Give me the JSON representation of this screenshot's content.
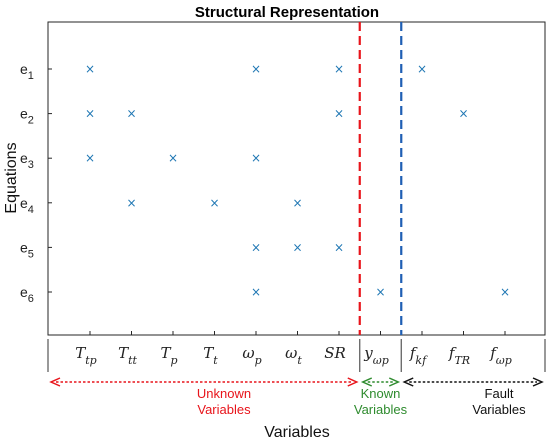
{
  "chart_data": {
    "type": "scatter",
    "title": "Structural Representation",
    "xlabel": "Variables",
    "ylabel": "Equations",
    "equations": [
      {
        "base": "e",
        "sub": "1"
      },
      {
        "base": "e",
        "sub": "2"
      },
      {
        "base": "e",
        "sub": "3"
      },
      {
        "base": "e",
        "sub": "4"
      },
      {
        "base": "e",
        "sub": "5"
      },
      {
        "base": "e",
        "sub": "6"
      }
    ],
    "variables": [
      {
        "base": "T",
        "sub": "tp"
      },
      {
        "base": "T",
        "sub": "tt"
      },
      {
        "base": "T",
        "sub": "p"
      },
      {
        "base": "T",
        "sub": "t"
      },
      {
        "base": "ω",
        "sub": "p"
      },
      {
        "base": "ω",
        "sub": "t"
      },
      {
        "base": "SR",
        "sub": ""
      },
      {
        "base": "y",
        "sub": "ωp"
      },
      {
        "base": "f",
        "sub": "kf"
      },
      {
        "base": "f",
        "sub": "TR"
      },
      {
        "base": "f",
        "sub": "ωp"
      }
    ],
    "points": [
      {
        "var": 0,
        "eq": 0
      },
      {
        "var": 4,
        "eq": 0
      },
      {
        "var": 6,
        "eq": 0
      },
      {
        "var": 8,
        "eq": 0
      },
      {
        "var": 0,
        "eq": 1
      },
      {
        "var": 1,
        "eq": 1
      },
      {
        "var": 6,
        "eq": 1
      },
      {
        "var": 9,
        "eq": 1
      },
      {
        "var": 0,
        "eq": 2
      },
      {
        "var": 2,
        "eq": 2
      },
      {
        "var": 4,
        "eq": 2
      },
      {
        "var": 1,
        "eq": 3
      },
      {
        "var": 3,
        "eq": 3
      },
      {
        "var": 5,
        "eq": 3
      },
      {
        "var": 4,
        "eq": 4
      },
      {
        "var": 5,
        "eq": 4
      },
      {
        "var": 6,
        "eq": 4
      },
      {
        "var": 4,
        "eq": 5
      },
      {
        "var": 7,
        "eq": 5
      },
      {
        "var": 10,
        "eq": 5
      }
    ],
    "marker": "×",
    "marker_color": "#1f77b4",
    "dividers": [
      {
        "after_var": 6,
        "color": "#e8141b",
        "style": "dashed"
      },
      {
        "after_var": 7,
        "color": "#1f5fb4",
        "style": "dashed"
      }
    ],
    "groups": [
      {
        "label_line1": "Unknown",
        "label_line2": "Variables",
        "color": "#e8141b",
        "from_var": 0,
        "to_var": 6
      },
      {
        "label_line1": "Known",
        "label_line2": "Variables",
        "color": "#2e8b2e",
        "from_var": 7,
        "to_var": 7
      },
      {
        "label_line1": "Fault",
        "label_line2": "Variables",
        "color": "#111111",
        "from_var": 8,
        "to_var": 10
      }
    ],
    "grid": false
  }
}
